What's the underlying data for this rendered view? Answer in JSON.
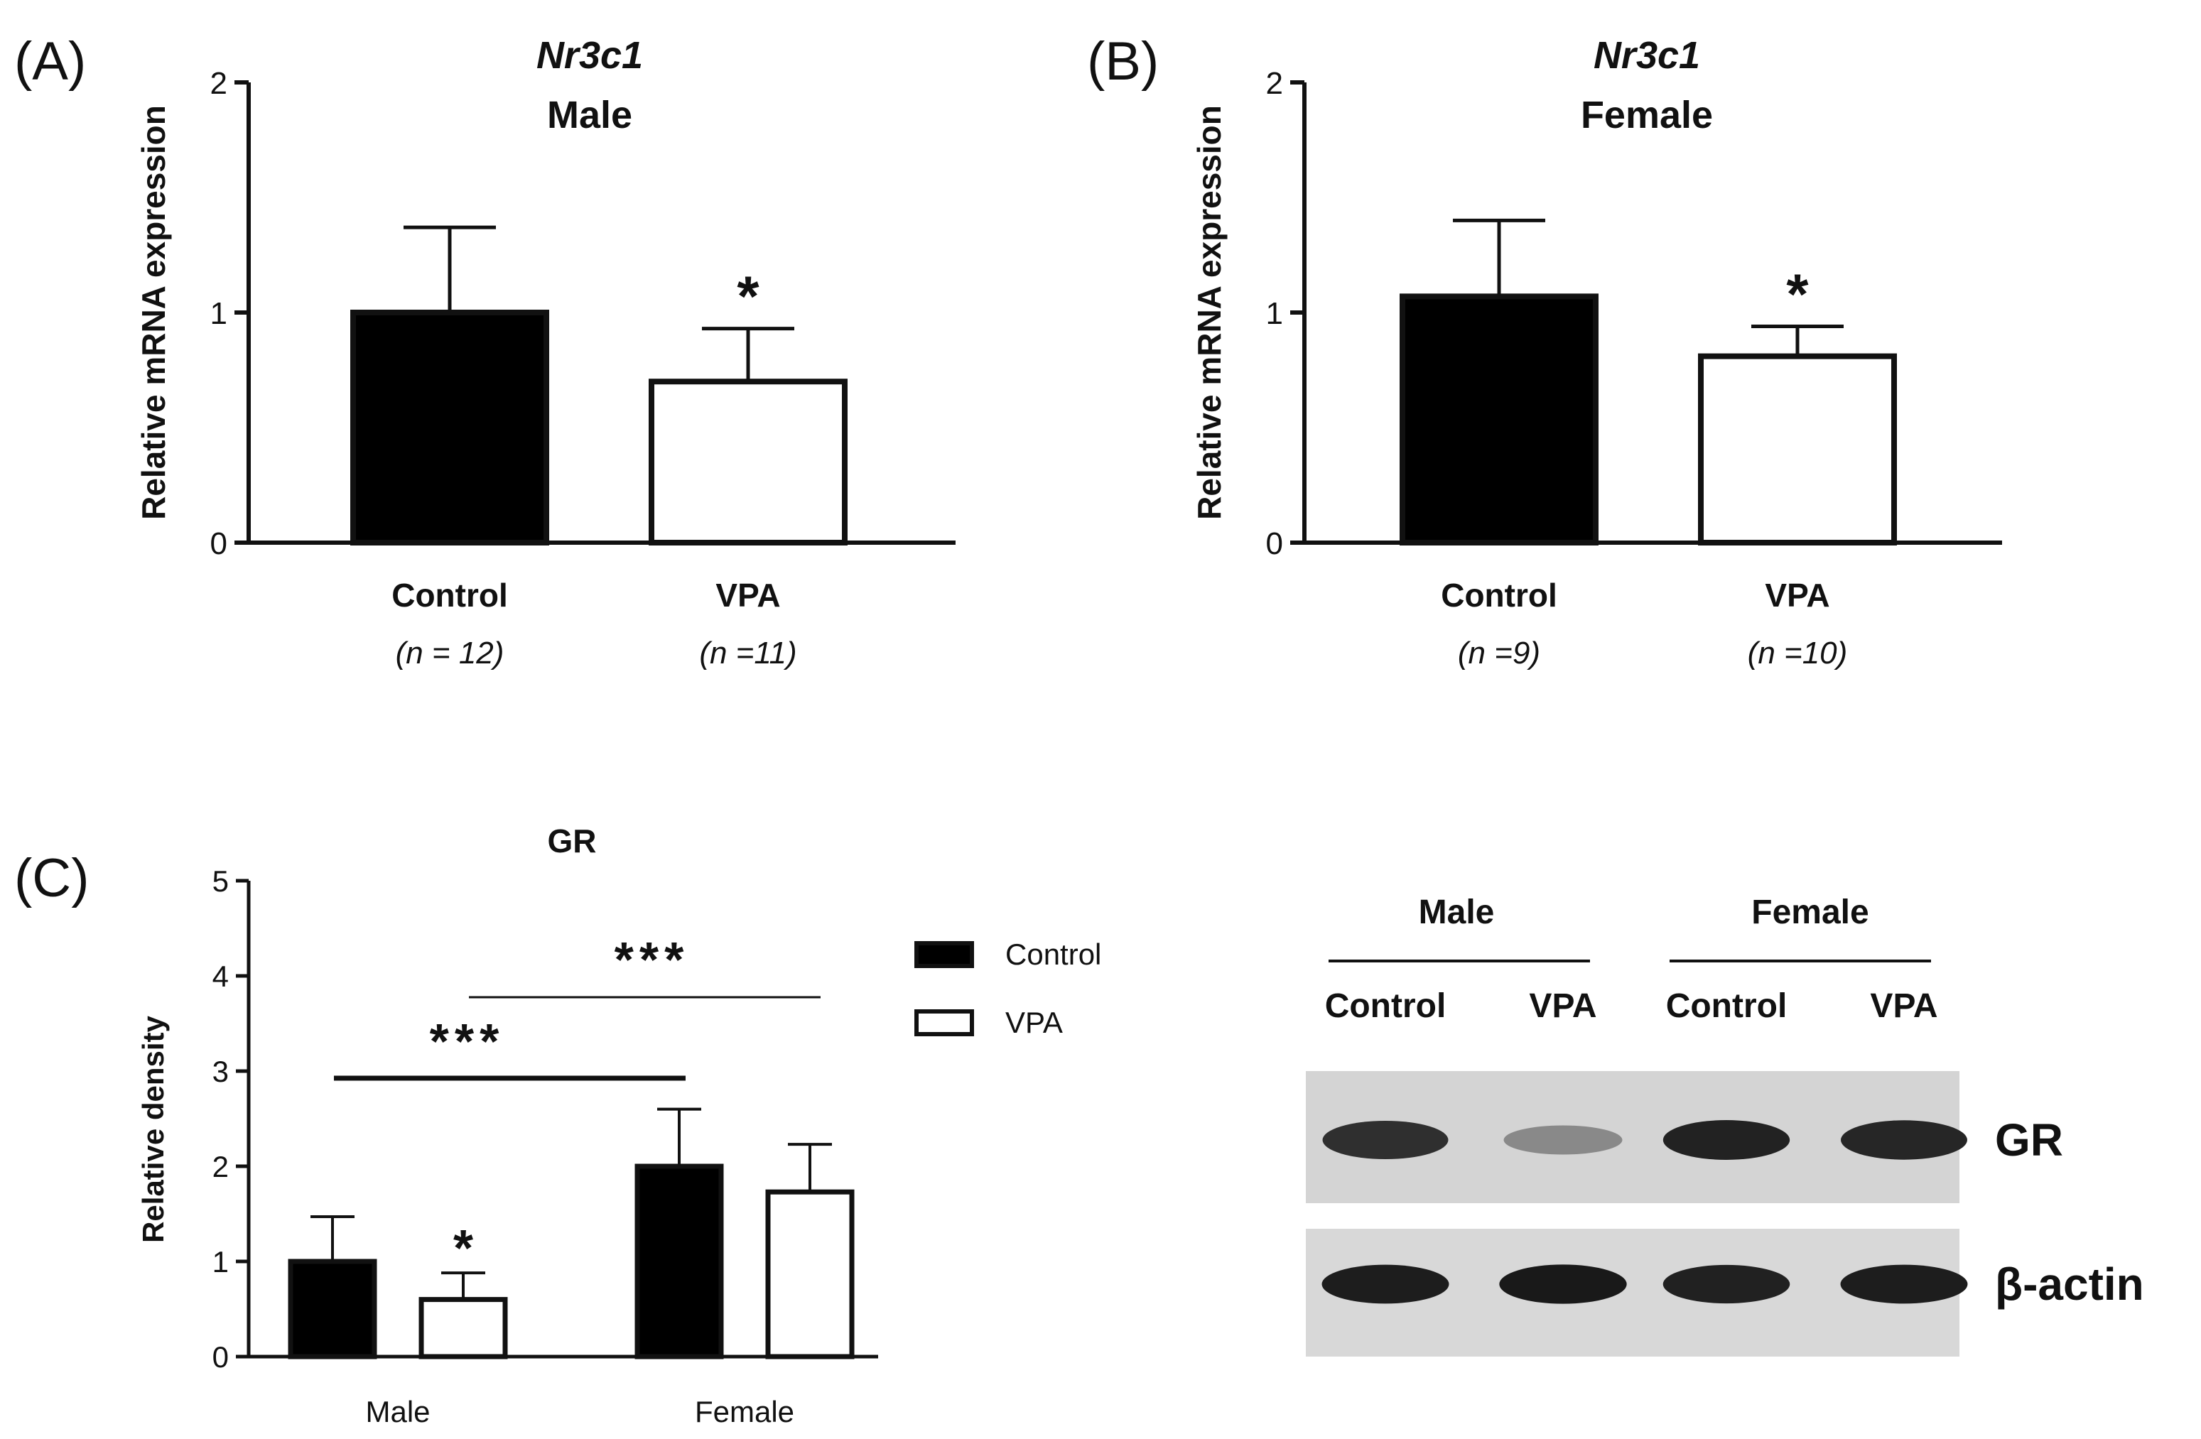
{
  "chart_data": [
    {
      "panel": "(A)",
      "type": "bar",
      "title": "Nr3c1",
      "subtitle": "Male",
      "ylabel": "Relative mRNA expression",
      "ylim": [
        0,
        2
      ],
      "yticks": [
        "0",
        "1",
        "2"
      ],
      "categories": [
        "Control",
        "VPA"
      ],
      "n_labels": [
        "(n = 12)",
        "(n =11)"
      ],
      "values": [
        1.0,
        0.7
      ],
      "errors": [
        0.37,
        0.23
      ],
      "significance": [
        "",
        "*"
      ],
      "fills": [
        "#000000",
        "#ffffff"
      ]
    },
    {
      "panel": "(B)",
      "type": "bar",
      "title": "Nr3c1",
      "subtitle": "Female",
      "ylabel": "Relative mRNA expression",
      "ylim": [
        0,
        2
      ],
      "yticks": [
        "0",
        "1",
        "2"
      ],
      "categories": [
        "Control",
        "VPA"
      ],
      "n_labels": [
        "(n =9)",
        "(n =10)"
      ],
      "values": [
        1.07,
        0.81
      ],
      "errors": [
        0.33,
        0.13
      ],
      "significance": [
        "",
        "*"
      ],
      "fills": [
        "#000000",
        "#ffffff"
      ]
    },
    {
      "panel": "(C)",
      "type": "bar",
      "title": "GR",
      "ylabel": "Relative density",
      "ylim": [
        0,
        5
      ],
      "yticks": [
        "0",
        "1",
        "2",
        "3",
        "4",
        "5"
      ],
      "categories": [
        "Male",
        "Female"
      ],
      "series": [
        {
          "name": "Control",
          "values": [
            1.0,
            2.0
          ],
          "errors": [
            0.47,
            0.6
          ],
          "fill": "#000000"
        },
        {
          "name": "VPA",
          "values": [
            0.6,
            1.73
          ],
          "errors": [
            0.28,
            0.5
          ],
          "fill": "#ffffff"
        }
      ],
      "bar_significance": [
        "",
        "*",
        "",
        ""
      ],
      "brackets": [
        {
          "label": "***",
          "from": "Male Control",
          "to": "Female Control"
        },
        {
          "label": "***",
          "from": "Male VPA",
          "to": "Female VPA"
        }
      ],
      "legend": "right"
    }
  ],
  "blot": {
    "groups": [
      "Male",
      "Female"
    ],
    "lanes": [
      "Control",
      "VPA",
      "Control",
      "VPA"
    ],
    "rows": [
      {
        "label": "GR",
        "intensities": [
          0.85,
          0.35,
          0.92,
          0.9
        ]
      },
      {
        "label": "β-actin",
        "intensities": [
          0.95,
          0.97,
          0.93,
          0.95
        ]
      }
    ]
  }
}
